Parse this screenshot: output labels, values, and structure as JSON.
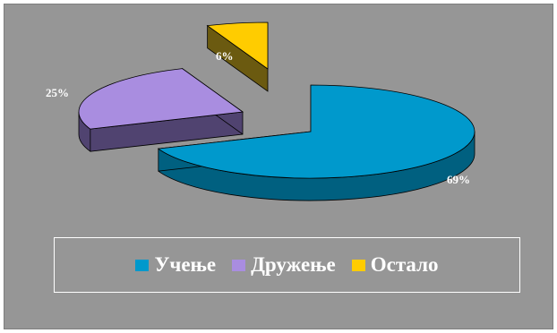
{
  "chart_data": {
    "type": "pie",
    "style": "3d-exploded",
    "categories": [
      "Учење",
      "Дружење",
      "Остало"
    ],
    "values": [
      69,
      25,
      6
    ],
    "data_labels": [
      "69%",
      "25%",
      "6%"
    ],
    "colors": {
      "top": [
        "#0099cc",
        "#a98de0",
        "#ffcc00"
      ],
      "side": [
        "#006080",
        "#504370",
        "#6b5a10"
      ]
    },
    "title": "",
    "legend_position": "bottom"
  }
}
